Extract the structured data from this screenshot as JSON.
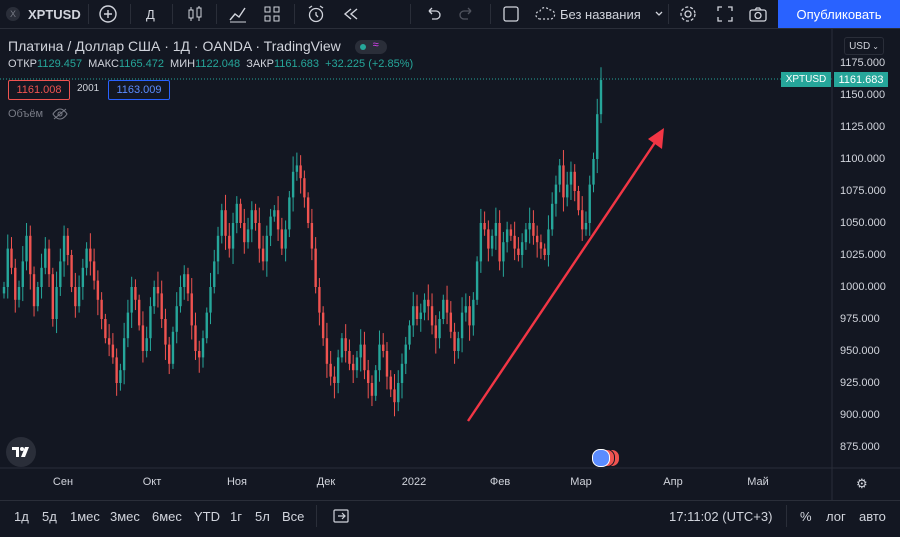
{
  "toolbar": {
    "symbol": "XPTUSD",
    "interval": "Д",
    "layout_name": "Без названия",
    "publish_label": "Опубликовать"
  },
  "legend": {
    "title": "Платина / Доллар США · 1Д · OANDA · TradingView",
    "open_label": "ОТКР",
    "open": "1129.457",
    "high_label": "МАКС",
    "high": "1165.472",
    "low_label": "МИН",
    "low": "1122.048",
    "close_label": "ЗАКР",
    "close": "1161.683",
    "change": "+32.225 (+2.85%)",
    "bid": "1161.008",
    "spread": "2001",
    "ask": "1163.009",
    "volume_label": "Объём"
  },
  "price_axis": {
    "currency": "USD",
    "ticks": [
      "1175.000",
      "1150.000",
      "1125.000",
      "1100.000",
      "1075.000",
      "1050.000",
      "1025.000",
      "1000.000",
      "975.000",
      "950.000",
      "925.000",
      "900.000",
      "875.000"
    ],
    "last_symbol": "XPTUSD",
    "last_price": "1161.683"
  },
  "time_axis": {
    "labels": [
      "Сен",
      "Окт",
      "Ноя",
      "Дек",
      "2022",
      "Фев",
      "Мар",
      "Апр",
      "Май"
    ]
  },
  "bottom": {
    "ranges": [
      "1д",
      "5д",
      "1мес",
      "3мес",
      "6мес",
      "YTD",
      "1г",
      "5л",
      "Все"
    ],
    "time": "17:11:02 (UTC+3)",
    "percent": "%",
    "log": "лог",
    "auto": "авто"
  },
  "chart_data": {
    "type": "candlestick",
    "title": "Платина / Доллар США · 1Д · OANDA · TradingView",
    "ylim": [
      860,
      1180
    ],
    "colors": {
      "up": "#26a69a",
      "down": "#ef5350",
      "arrow": "#f23645"
    },
    "closes": [
      1000,
      1030,
      1015,
      990,
      1000,
      1020,
      1040,
      1010,
      985,
      1000,
      1015,
      1030,
      1010,
      975,
      1000,
      1020,
      1040,
      1025,
      1000,
      985,
      1000,
      1015,
      1030,
      1020,
      1005,
      990,
      975,
      960,
      955,
      945,
      925,
      935,
      960,
      980,
      1000,
      990,
      970,
      950,
      960,
      985,
      1000,
      995,
      975,
      955,
      940,
      965,
      985,
      1000,
      1010,
      995,
      970,
      950,
      945,
      960,
      980,
      1000,
      1020,
      1040,
      1060,
      1040,
      1030,
      1050,
      1065,
      1050,
      1035,
      1045,
      1060,
      1050,
      1030,
      1020,
      1040,
      1055,
      1060,
      1045,
      1030,
      1045,
      1070,
      1090,
      1095,
      1085,
      1070,
      1050,
      1030,
      1000,
      980,
      960,
      940,
      930,
      925,
      945,
      960,
      950,
      940,
      935,
      945,
      955,
      935,
      925,
      915,
      935,
      955,
      950,
      930,
      920,
      910,
      925,
      940,
      955,
      970,
      985,
      975,
      980,
      990,
      985,
      970,
      960,
      975,
      990,
      980,
      965,
      950,
      960,
      980,
      985,
      970,
      990,
      1020,
      1050,
      1045,
      1030,
      1040,
      1050,
      1020,
      1035,
      1045,
      1040,
      1030,
      1025,
      1035,
      1045,
      1050,
      1040,
      1035,
      1030,
      1025,
      1045,
      1065,
      1080,
      1095,
      1070,
      1080,
      1090,
      1075,
      1060,
      1045,
      1050,
      1080,
      1100,
      1135,
      1161.683
    ]
  }
}
